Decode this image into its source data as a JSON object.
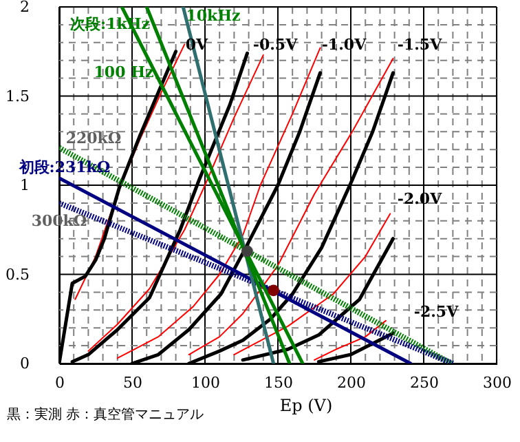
{
  "chart_data": {
    "type": "line",
    "xlabel": "Ep (V)",
    "xlim": [
      0,
      300
    ],
    "ylim": [
      0,
      2
    ],
    "xticks": [
      0,
      {
        "value": 10,
        "label": null
      },
      {
        "value": 20,
        "label": null
      },
      {
        "value": 30,
        "label": null
      },
      {
        "value": 40,
        "label": null
      },
      50,
      {
        "value": 60,
        "label": null
      },
      {
        "value": 70,
        "label": null
      },
      {
        "value": 80,
        "label": null
      },
      {
        "value": 90,
        "label": null
      },
      100,
      {
        "value": 110,
        "label": null
      },
      {
        "value": 120,
        "label": null
      },
      {
        "value": 130,
        "label": null
      },
      {
        "value": 140,
        "label": null
      },
      150,
      {
        "value": 160,
        "label": null
      },
      {
        "value": 170,
        "label": null
      },
      {
        "value": 180,
        "label": null
      },
      {
        "value": 190,
        "label": null
      },
      200,
      {
        "value": 210,
        "label": null
      },
      {
        "value": 220,
        "label": null
      },
      {
        "value": 230,
        "label": null
      },
      {
        "value": 240,
        "label": null
      },
      250,
      {
        "value": 260,
        "label": null
      },
      {
        "value": 270,
        "label": null
      },
      {
        "value": 280,
        "label": null
      },
      {
        "value": 290,
        "label": null
      },
      300
    ],
    "yticks": [
      0,
      {
        "value": 0.1,
        "label": null
      },
      {
        "value": 0.2,
        "label": null
      },
      {
        "value": 0.3,
        "label": null
      },
      {
        "value": 0.4,
        "label": null
      },
      0.5,
      {
        "value": 0.6,
        "label": null
      },
      {
        "value": 0.7,
        "label": null
      },
      {
        "value": 0.8,
        "label": null
      },
      {
        "value": 0.9,
        "label": null
      },
      1,
      {
        "value": 1.1,
        "label": null
      },
      {
        "value": 1.2,
        "label": null
      },
      {
        "value": 1.3,
        "label": null
      },
      {
        "value": 1.4,
        "label": null
      },
      1.5,
      {
        "value": 1.6,
        "label": null
      },
      {
        "value": 1.7,
        "label": null
      },
      {
        "value": 1.8,
        "label": null
      },
      {
        "value": 1.9,
        "label": null
      },
      2
    ],
    "grid": true,
    "series": [
      {
        "color": "#ff0000",
        "x": [
          11,
          25,
          40,
          55,
          70,
          86
        ],
        "values": [
          0.36,
          0.6,
          0.95,
          1.25,
          1.52,
          1.79
        ]
      },
      {
        "color": "#ff0000",
        "x": [
          20,
          40,
          62,
          86,
          100,
          120,
          140
        ],
        "values": [
          0.07,
          0.22,
          0.42,
          0.75,
          1.0,
          1.38,
          1.73
        ]
      },
      {
        "color": "#ff0000",
        "x": [
          40,
          68,
          92,
          110,
          126,
          138,
          160,
          179
        ],
        "values": [
          0.03,
          0.15,
          0.32,
          0.5,
          0.72,
          1.0,
          1.4,
          1.77
        ]
      },
      {
        "color": "#ff0000",
        "x": [
          89,
          110,
          126,
          150,
          175,
          201,
          229
        ],
        "values": [
          0.05,
          0.15,
          0.28,
          0.55,
          0.95,
          1.3,
          1.71
        ]
      },
      {
        "color": "#ff0000",
        "x": [
          120,
          157,
          188,
          210,
          227
        ],
        "values": [
          0.05,
          0.21,
          0.39,
          0.6,
          0.84
        ]
      },
      {
        "color": "#ff0000",
        "x": [
          175,
          190,
          210,
          224
        ],
        "values": [
          0.02,
          0.08,
          0.15,
          0.24
        ]
      },
      {
        "color": "#000000",
        "x": [
          0,
          9,
          18,
          25,
          31,
          41,
          55,
          68,
          80
        ],
        "values": [
          0,
          0.45,
          0.49,
          0.58,
          0.7,
          0.98,
          1.27,
          1.52,
          1.75
        ]
      },
      {
        "color": "#000000",
        "x": [
          9,
          20,
          40,
          62,
          83,
          96,
          117,
          129
        ],
        "values": [
          0.01,
          0.05,
          0.19,
          0.37,
          0.75,
          1.03,
          1.45,
          1.74
        ]
      },
      {
        "color": "#000000",
        "x": [
          50,
          68,
          89,
          111,
          128,
          150,
          165,
          179
        ],
        "values": [
          0,
          0.05,
          0.19,
          0.39,
          0.65,
          1.0,
          1.3,
          1.63
        ]
      },
      {
        "color": "#000000",
        "x": [
          89,
          110,
          126,
          145,
          160,
          180,
          201,
          215,
          229
        ],
        "values": [
          0,
          0.07,
          0.13,
          0.25,
          0.39,
          0.65,
          1.03,
          1.3,
          1.63
        ]
      },
      {
        "color": "#000000",
        "x": [
          126,
          157,
          178,
          206,
          229
        ],
        "values": [
          0.02,
          0.08,
          0.16,
          0.36,
          0.7
        ]
      },
      {
        "color": "#000000",
        "x": [
          178,
          200,
          229
        ],
        "values": [
          0.01,
          0.05,
          0.17
        ]
      },
      {
        "color": "#008000",
        "line_style": "dotted",
        "x": [
          0,
          269
        ],
        "values": [
          1.21,
          0
        ]
      },
      {
        "color": "#000080",
        "line_style": "dotted",
        "x": [
          0,
          270
        ],
        "values": [
          0.9,
          0
        ]
      },
      {
        "color": "#000080",
        "x": [
          0,
          241
        ],
        "values": [
          1.04,
          0
        ]
      },
      {
        "color": "#008000",
        "x": [
          43,
          167
        ],
        "values": [
          2,
          0
        ]
      },
      {
        "color": "#2f6f6f",
        "x": [
          85,
          147
        ],
        "values": [
          2,
          0
        ]
      },
      {
        "color": "#008000",
        "x": [
          60,
          158
        ],
        "values": [
          2,
          0
        ]
      },
      {
        "type": "scatter",
        "marker": "circle",
        "color": "#404040",
        "x": [
          129
        ],
        "values": [
          0.63
        ]
      },
      {
        "type": "scatter",
        "marker": "circle",
        "color": "#800000",
        "x": [
          147
        ],
        "values": [
          0.41
        ]
      }
    ],
    "annotations": [
      "次段:1kHz",
      "10kHz",
      "100 Hz",
      "0V",
      "-0.5V",
      "-1.0V",
      "-1.5V",
      "-2.0V",
      "-2.5V",
      "220kΩ",
      "初段:231kΩ",
      "300kΩ",
      "黒：実測 赤：真空管マニュアル"
    ]
  }
}
